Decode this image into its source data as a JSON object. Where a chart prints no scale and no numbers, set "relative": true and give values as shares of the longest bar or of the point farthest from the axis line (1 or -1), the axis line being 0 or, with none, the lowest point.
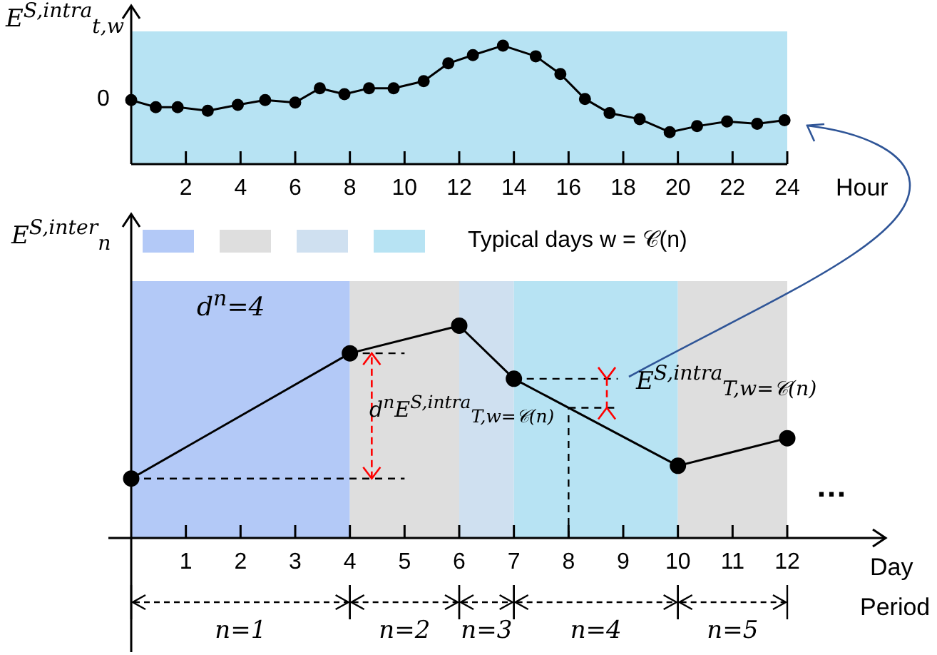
{
  "chart_data": [
    {
      "type": "line",
      "ylabel": "E$^{S,intra}$$_{t,w}$",
      "xlabel": "Hour",
      "relative": true,
      "color": "#000000",
      "marker": "circle",
      "x": [
        0,
        0.9,
        1.7,
        2.8,
        3.9,
        4.9,
        6,
        6.9,
        7.8,
        8.7,
        9.6,
        10.7,
        11.6,
        12.5,
        13.6,
        14.8,
        15.7,
        16.6,
        17.5,
        18.6,
        19.7,
        20.7,
        21.8,
        22.9,
        23.9
      ],
      "values": [
        0.54,
        0.48,
        0.48,
        0.45,
        0.5,
        0.54,
        0.52,
        0.64,
        0.59,
        0.64,
        0.64,
        0.7,
        0.85,
        0.92,
        1,
        0.91,
        0.76,
        0.55,
        0.43,
        0.38,
        0.27,
        0.32,
        0.36,
        0.34,
        0.37
      ],
      "xlim": [
        0,
        24
      ],
      "xticks": [
        2,
        4,
        6,
        8,
        10,
        12,
        14,
        16,
        18,
        20,
        22,
        24
      ],
      "bands": [
        {
          "axis": "x",
          "from": 0,
          "to": 24,
          "color": "#b7e3f3"
        }
      ],
      "annotations": [
        "0"
      ]
    },
    {
      "type": "line",
      "ylabel": "E$^{S,inter}$$_{n}$",
      "xlabel": "Day",
      "relative": true,
      "color": "#000000",
      "marker": "circle",
      "legend_title": "Typical days w = 𝒞(n)",
      "x": [
        0,
        4,
        6,
        7,
        10,
        12
      ],
      "values": [
        0.28,
        0.87,
        1,
        0.75,
        0.34,
        0.47
      ],
      "xlim": [
        0,
        13.8
      ],
      "xticks": [
        1,
        2,
        3,
        4,
        5,
        6,
        7,
        8,
        9,
        10,
        11,
        12
      ],
      "bands": [
        {
          "axis": "x",
          "from": 0,
          "to": 4,
          "color": "#b3c9f7"
        },
        {
          "axis": "x",
          "from": 4,
          "to": 6,
          "color": "#dedede"
        },
        {
          "axis": "x",
          "from": 6,
          "to": 7,
          "color": "#cfe0f0"
        },
        {
          "axis": "x",
          "from": 7,
          "to": 10,
          "color": "#b7e3f3"
        },
        {
          "axis": "x",
          "from": 10,
          "to": 12,
          "color": "#dedede"
        }
      ],
      "annotations": [
        "n=1",
        "n=2",
        "n=3",
        "n=4",
        "n=5",
        "d$^{n}$=4",
        "d$^{n}$E$^{S,intra}$$_{T,w=𝒞(n)}$",
        "E$^{S,intra}$$_{T,w=𝒞(n)}$",
        "…",
        "Period"
      ]
    }
  ]
}
